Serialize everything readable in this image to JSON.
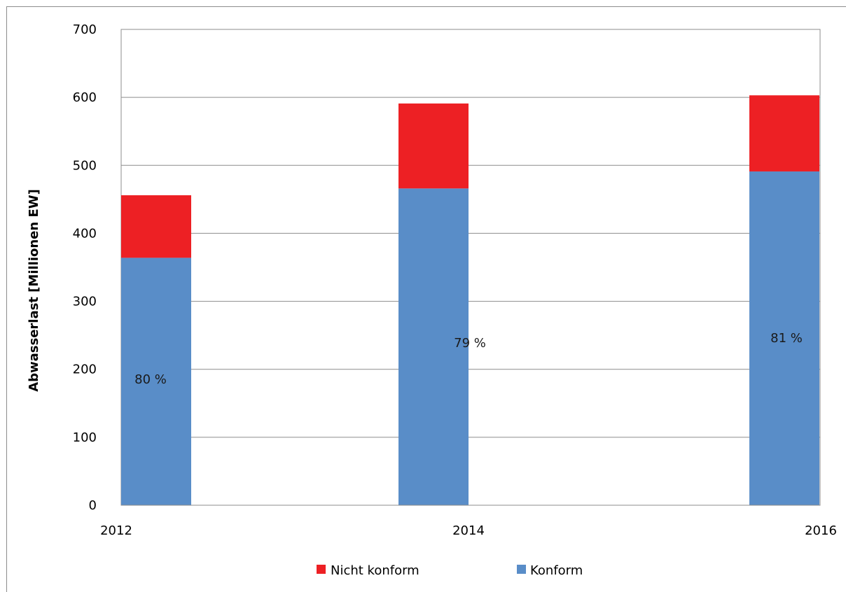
{
  "chart_data": {
    "type": "bar",
    "stacked": true,
    "categories": [
      "2012",
      "2014",
      "2016"
    ],
    "series": [
      {
        "name": "Konform",
        "color": "#598dc8",
        "values": [
          364,
          466,
          491
        ]
      },
      {
        "name": "Nicht konform",
        "color": "#ed2024",
        "values": [
          92,
          125,
          112
        ]
      }
    ],
    "data_labels": [
      "80 %",
      "79 %",
      "81 %"
    ],
    "ylabel": "Abwasserlast  [Millionen  EW]",
    "xlabel": "",
    "ylim": [
      0,
      700
    ],
    "yticks": [
      0,
      100,
      200,
      300,
      400,
      500,
      600,
      700
    ],
    "grid": true,
    "legend_position": "bottom",
    "legend_order": [
      "Nicht konform",
      "Konform"
    ]
  }
}
